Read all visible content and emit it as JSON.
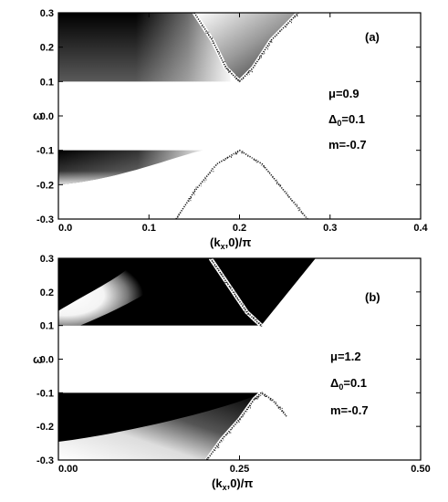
{
  "chart_data": [
    {
      "type": "heatmap",
      "panel_label": "(a)",
      "xlabel": "(k",
      "xlabel_sub": "x",
      "xlabel_tail": ",0)/π",
      "ylabel": "ω",
      "xlim": [
        0.0,
        0.4
      ],
      "ylim": [
        -0.3,
        0.3
      ],
      "x_ticks": [
        "0.0",
        "0.1",
        "0.2",
        "0.3",
        "0.4"
      ],
      "x_tick_values": [
        0.0,
        0.1,
        0.2,
        0.3,
        0.4
      ],
      "y_ticks": [
        "0.3",
        "0.2",
        "0.1",
        "0.0",
        "-0.1",
        "-0.2",
        "-0.3"
      ],
      "y_tick_values": [
        0.3,
        0.2,
        0.1,
        0.0,
        -0.1,
        -0.2,
        -0.3
      ],
      "params": {
        "mu": "μ=0.9",
        "delta_base": "Δ",
        "delta_sub": "0",
        "delta_tail": "=0.1",
        "m": "m=-0.7"
      },
      "gap": [
        -0.1,
        0.1
      ],
      "band_minimum": {
        "kx": 0.2,
        "omega": 0.1
      },
      "band_maximum": {
        "kx": 0.2,
        "omega": -0.1
      },
      "upper_branch": {
        "kx": [
          0.15,
          0.17,
          0.185,
          0.2,
          0.215,
          0.235,
          0.265
        ],
        "omega": [
          0.3,
          0.22,
          0.14,
          0.1,
          0.14,
          0.22,
          0.3
        ]
      },
      "lower_branch": {
        "kx": [
          0.13,
          0.15,
          0.175,
          0.2,
          0.225,
          0.25,
          0.275
        ],
        "omega": [
          -0.3,
          -0.22,
          -0.14,
          -0.1,
          -0.14,
          -0.22,
          -0.3
        ]
      },
      "upper_left_fill": {
        "kx_start": 0.0,
        "kx_end": 0.19,
        "omega_range": [
          0.1,
          0.3
        ]
      },
      "lower_left_fill": {
        "kx_start": 0.0,
        "kx_end": 0.16,
        "omega_range": [
          -0.2,
          -0.1
        ]
      }
    },
    {
      "type": "heatmap",
      "panel_label": "(b)",
      "xlabel": "(k",
      "xlabel_sub": "x",
      "xlabel_tail": ",0)/π",
      "ylabel": "ω",
      "xlim": [
        0.0,
        0.5
      ],
      "ylim": [
        -0.3,
        0.3
      ],
      "x_ticks": [
        "0.00",
        "0.25",
        "0.50"
      ],
      "x_tick_values": [
        0.0,
        0.25,
        0.5
      ],
      "y_ticks": [
        "0.3",
        "0.2",
        "0.1",
        "0.0",
        "-0.1",
        "-0.2",
        "-0.3"
      ],
      "y_tick_values": [
        0.3,
        0.2,
        0.1,
        0.0,
        -0.1,
        -0.2,
        -0.3
      ],
      "params": {
        "mu": "μ=1.2",
        "delta_base": "Δ",
        "delta_sub": "0",
        "delta_tail": "=0.1",
        "m": "m=-0.7"
      },
      "gap": [
        -0.1,
        0.1
      ],
      "band_minimum": {
        "kx": 0.28,
        "omega": 0.1
      },
      "band_maximum": {
        "kx": 0.28,
        "omega": -0.1
      },
      "upper_branch": {
        "kx": [
          0.21,
          0.235,
          0.26,
          0.28
        ],
        "omega": [
          0.3,
          0.22,
          0.14,
          0.1
        ]
      },
      "lower_branch": {
        "kx": [
          0.205,
          0.225,
          0.25,
          0.27,
          0.28,
          0.295,
          0.315
        ],
        "omega": [
          -0.3,
          -0.24,
          -0.18,
          -0.12,
          -0.1,
          -0.12,
          -0.17
        ]
      },
      "upper_dark_region": {
        "kx_range": [
          0.0,
          0.355
        ],
        "omega_range": [
          0.1,
          0.3
        ]
      },
      "lower_dark_region": {
        "kx_range": [
          0.0,
          0.28
        ],
        "omega_range": [
          -0.3,
          -0.1
        ]
      }
    }
  ]
}
